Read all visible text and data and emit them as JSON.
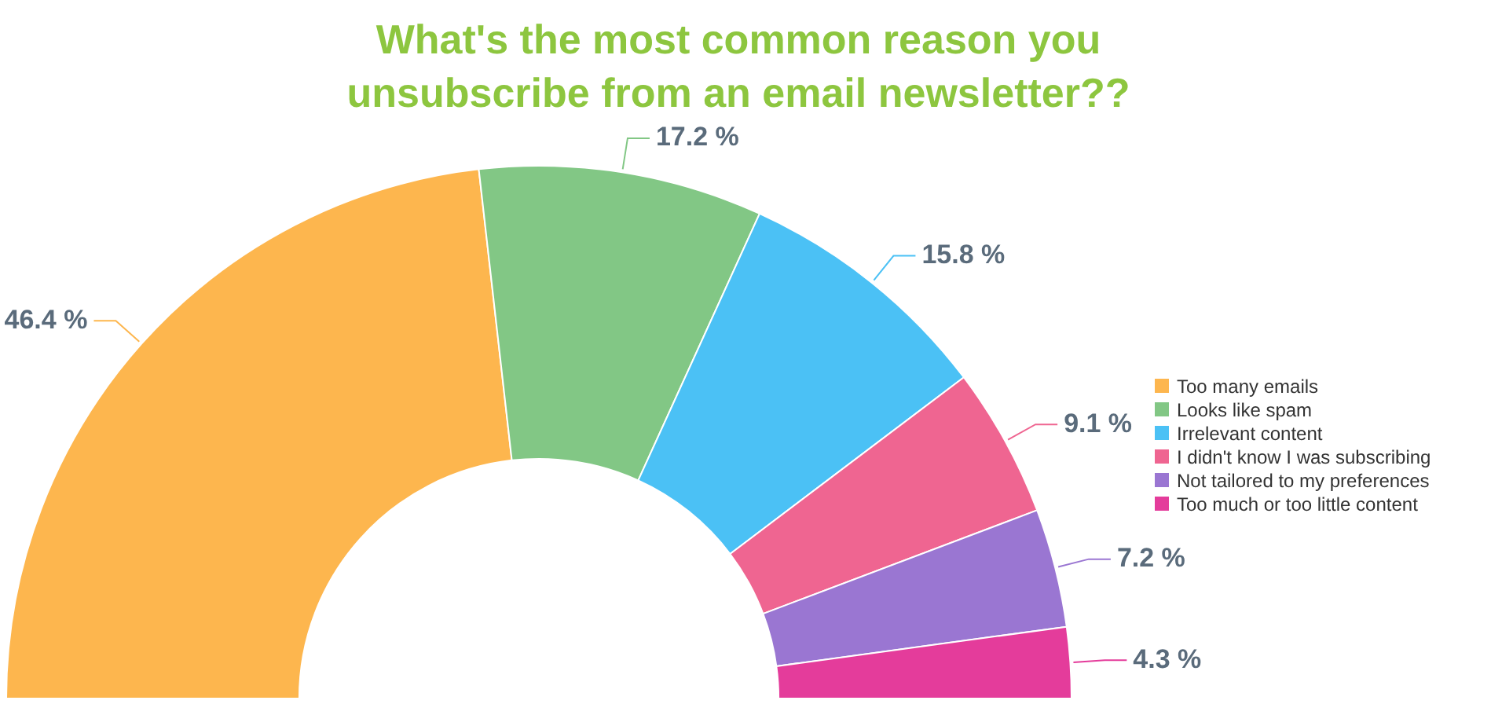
{
  "chart_data": {
    "type": "donut",
    "title": "What's the most common reason you unsubscribe from an email newsletter??",
    "categories": [
      "Too many emails",
      "Looks like spam",
      "Irrelevant content",
      "I didn't know I was subscribing",
      "Not tailored to my preferences",
      "Too much or too little content"
    ],
    "values": [
      46.4,
      17.2,
      15.8,
      9.1,
      7.2,
      4.3
    ],
    "colors": [
      "#fdb64e",
      "#82c785",
      "#4bc1f5",
      "#ef6591",
      "#9a76d2",
      "#e43c9b"
    ],
    "value_labels": [
      "46.4 %",
      "17.2 %",
      "15.8 %",
      "9.1 %",
      "7.2 %",
      "4.3 %"
    ],
    "legend": "right"
  }
}
